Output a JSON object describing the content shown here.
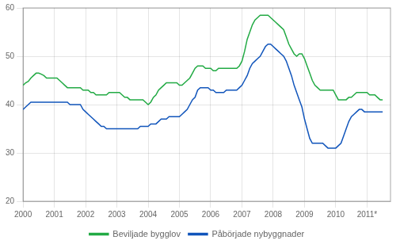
{
  "chart_data": {
    "type": "line",
    "x": [
      2000.0,
      2000.083,
      2000.167,
      2000.25,
      2000.333,
      2000.417,
      2000.5,
      2000.583,
      2000.667,
      2000.75,
      2000.833,
      2000.917,
      2001.0,
      2001.083,
      2001.167,
      2001.25,
      2001.333,
      2001.417,
      2001.5,
      2001.583,
      2001.667,
      2001.75,
      2001.833,
      2001.917,
      2002.0,
      2002.083,
      2002.167,
      2002.25,
      2002.333,
      2002.417,
      2002.5,
      2002.583,
      2002.667,
      2002.75,
      2002.833,
      2002.917,
      2003.0,
      2003.083,
      2003.167,
      2003.25,
      2003.333,
      2003.417,
      2003.5,
      2003.583,
      2003.667,
      2003.75,
      2003.833,
      2003.917,
      2004.0,
      2004.083,
      2004.167,
      2004.25,
      2004.333,
      2004.417,
      2004.5,
      2004.583,
      2004.667,
      2004.75,
      2004.833,
      2004.917,
      2005.0,
      2005.083,
      2005.167,
      2005.25,
      2005.333,
      2005.417,
      2005.5,
      2005.583,
      2005.667,
      2005.75,
      2005.833,
      2005.917,
      2006.0,
      2006.083,
      2006.167,
      2006.25,
      2006.333,
      2006.417,
      2006.5,
      2006.583,
      2006.667,
      2006.75,
      2006.833,
      2006.917,
      2007.0,
      2007.083,
      2007.167,
      2007.25,
      2007.333,
      2007.417,
      2007.5,
      2007.583,
      2007.667,
      2007.75,
      2007.833,
      2007.917,
      2008.0,
      2008.083,
      2008.167,
      2008.25,
      2008.333,
      2008.417,
      2008.5,
      2008.583,
      2008.667,
      2008.75,
      2008.833,
      2008.917,
      2009.0,
      2009.083,
      2009.167,
      2009.25,
      2009.333,
      2009.417,
      2009.5,
      2009.583,
      2009.667,
      2009.75,
      2009.833,
      2009.917,
      2010.0,
      2010.083,
      2010.167,
      2010.25,
      2010.333,
      2010.417,
      2010.5,
      2010.583,
      2010.667,
      2010.75,
      2010.833,
      2010.917,
      2011.0,
      2011.083,
      2011.167,
      2011.25,
      2011.333,
      2011.417,
      2011.5
    ],
    "series": [
      {
        "name": "Beviljade bygglov",
        "color": "#22aa44",
        "values": [
          44.0,
          44.5,
          44.8,
          45.5,
          46.0,
          46.5,
          46.5,
          46.3,
          46.0,
          45.5,
          45.5,
          45.5,
          45.5,
          45.5,
          45.0,
          44.5,
          44.0,
          43.5,
          43.5,
          43.5,
          43.5,
          43.5,
          43.5,
          43.0,
          43.0,
          43.0,
          42.5,
          42.5,
          42.0,
          42.0,
          42.0,
          42.0,
          42.0,
          42.5,
          42.5,
          42.5,
          42.5,
          42.5,
          42.0,
          41.5,
          41.5,
          41.0,
          41.0,
          41.0,
          41.0,
          41.0,
          41.0,
          40.5,
          40.0,
          40.5,
          41.5,
          42.0,
          43.0,
          43.5,
          44.0,
          44.5,
          44.5,
          44.5,
          44.5,
          44.5,
          44.0,
          44.0,
          44.5,
          45.0,
          45.5,
          46.5,
          47.5,
          48.0,
          48.0,
          48.0,
          47.5,
          47.5,
          47.5,
          47.0,
          47.0,
          47.5,
          47.5,
          47.5,
          47.5,
          47.5,
          47.5,
          47.5,
          47.5,
          48.0,
          49.0,
          51.0,
          53.5,
          55.0,
          56.5,
          57.5,
          58.0,
          58.5,
          58.5,
          58.5,
          58.5,
          58.0,
          57.5,
          57.0,
          56.5,
          56.0,
          55.5,
          54.0,
          52.5,
          51.5,
          50.5,
          50.0,
          50.5,
          50.5,
          49.5,
          48.0,
          46.5,
          45.0,
          44.0,
          43.5,
          43.0,
          43.0,
          43.0,
          43.0,
          43.0,
          43.0,
          42.0,
          41.0,
          41.0,
          41.0,
          41.0,
          41.5,
          41.5,
          42.0,
          42.5,
          42.5,
          42.5,
          42.5,
          42.5,
          42.0,
          42.0,
          42.0,
          41.5,
          41.0,
          41.0
        ]
      },
      {
        "name": "Påbörjade nybyggnader",
        "color": "#1155bb",
        "values": [
          39.0,
          39.5,
          40.0,
          40.5,
          40.5,
          40.5,
          40.5,
          40.5,
          40.5,
          40.5,
          40.5,
          40.5,
          40.5,
          40.5,
          40.5,
          40.5,
          40.5,
          40.5,
          40.0,
          40.0,
          40.0,
          40.0,
          40.0,
          39.0,
          38.5,
          38.0,
          37.5,
          37.0,
          36.5,
          36.0,
          35.5,
          35.5,
          35.0,
          35.0,
          35.0,
          35.0,
          35.0,
          35.0,
          35.0,
          35.0,
          35.0,
          35.0,
          35.0,
          35.0,
          35.0,
          35.5,
          35.5,
          35.5,
          35.5,
          36.0,
          36.0,
          36.0,
          36.5,
          37.0,
          37.0,
          37.0,
          37.5,
          37.5,
          37.5,
          37.5,
          37.5,
          38.0,
          38.5,
          39.0,
          40.0,
          41.0,
          41.5,
          43.0,
          43.5,
          43.5,
          43.5,
          43.5,
          43.0,
          43.0,
          42.5,
          42.5,
          42.5,
          42.5,
          43.0,
          43.0,
          43.0,
          43.0,
          43.0,
          43.5,
          44.0,
          45.0,
          46.0,
          47.5,
          48.5,
          49.0,
          49.5,
          50.0,
          51.0,
          52.0,
          52.5,
          52.5,
          52.0,
          51.5,
          51.0,
          50.5,
          50.0,
          49.0,
          47.5,
          46.0,
          44.0,
          42.5,
          41.0,
          39.5,
          37.0,
          35.0,
          33.0,
          32.0,
          32.0,
          32.0,
          32.0,
          32.0,
          31.5,
          31.0,
          31.0,
          31.0,
          31.0,
          31.5,
          32.0,
          33.5,
          35.0,
          36.5,
          37.5,
          38.0,
          38.5,
          39.0,
          39.0,
          38.5,
          38.5,
          38.5,
          38.5,
          38.5,
          38.5,
          38.5,
          38.5
        ]
      }
    ],
    "xlim": [
      2000.0,
      2011.75
    ],
    "xticks": [
      2000,
      2001,
      2002,
      2003,
      2004,
      2005,
      2006,
      2007,
      2008,
      2009,
      2010,
      {
        "value": 2011,
        "label": "2011*"
      }
    ],
    "ylim": [
      20,
      60
    ],
    "yticks": [
      20,
      30,
      40,
      50,
      60
    ],
    "grid": true,
    "legend": "bottom"
  }
}
